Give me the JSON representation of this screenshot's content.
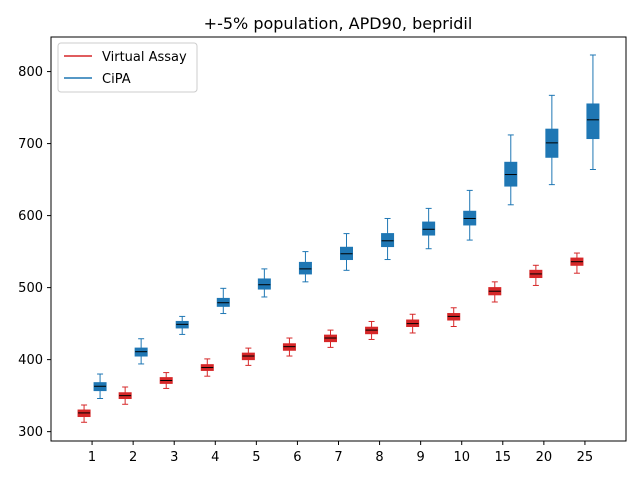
{
  "chart_data": {
    "type": "box",
    "title": "+-5% population, APD90, bepridil",
    "xlabel": "",
    "ylabel": "",
    "categories": [
      "1",
      "2",
      "3",
      "4",
      "5",
      "6",
      "7",
      "8",
      "9",
      "10",
      "15",
      "20",
      "25"
    ],
    "ylim": [
      287,
      848
    ],
    "yticks": [
      300,
      400,
      500,
      600,
      700,
      800
    ],
    "grid": false,
    "legend_position": "upper-left",
    "series": [
      {
        "name": "Virtual Assay",
        "color": "#d62728",
        "boxes": [
          {
            "whisker_low": 313,
            "q1": 321,
            "median": 326,
            "q3": 330,
            "whisker_high": 337
          },
          {
            "whisker_low": 338,
            "q1": 346,
            "median": 350,
            "q3": 354,
            "whisker_high": 362
          },
          {
            "whisker_low": 360,
            "q1": 367,
            "median": 371,
            "q3": 375,
            "whisker_high": 382
          },
          {
            "whisker_low": 377,
            "q1": 385,
            "median": 389,
            "q3": 393,
            "whisker_high": 401
          },
          {
            "whisker_low": 392,
            "q1": 400,
            "median": 405,
            "q3": 409,
            "whisker_high": 416
          },
          {
            "whisker_low": 405,
            "q1": 413,
            "median": 418,
            "q3": 422,
            "whisker_high": 430
          },
          {
            "whisker_low": 417,
            "q1": 425,
            "median": 430,
            "q3": 434,
            "whisker_high": 441
          },
          {
            "whisker_low": 428,
            "q1": 436,
            "median": 441,
            "q3": 445,
            "whisker_high": 453
          },
          {
            "whisker_low": 437,
            "q1": 446,
            "median": 450,
            "q3": 455,
            "whisker_high": 463
          },
          {
            "whisker_low": 446,
            "q1": 455,
            "median": 460,
            "q3": 464,
            "whisker_high": 472
          },
          {
            "whisker_low": 480,
            "q1": 490,
            "median": 495,
            "q3": 500,
            "whisker_high": 508
          },
          {
            "whisker_low": 503,
            "q1": 514,
            "median": 519,
            "q3": 524,
            "whisker_high": 531
          },
          {
            "whisker_low": 520,
            "q1": 531,
            "median": 536,
            "q3": 541,
            "whisker_high": 548
          }
        ]
      },
      {
        "name": "CiPA",
        "color": "#1f77b4",
        "boxes": [
          {
            "whisker_low": 346,
            "q1": 357,
            "median": 363,
            "q3": 368,
            "whisker_high": 380
          },
          {
            "whisker_low": 394,
            "q1": 405,
            "median": 411,
            "q3": 416,
            "whisker_high": 429
          },
          {
            "whisker_low": 435,
            "q1": 444,
            "median": 449,
            "q3": 453,
            "whisker_high": 460
          },
          {
            "whisker_low": 464,
            "q1": 474,
            "median": 479,
            "q3": 485,
            "whisker_high": 499
          },
          {
            "whisker_low": 487,
            "q1": 498,
            "median": 504,
            "q3": 512,
            "whisker_high": 526
          },
          {
            "whisker_low": 508,
            "q1": 519,
            "median": 526,
            "q3": 535,
            "whisker_high": 550
          },
          {
            "whisker_low": 524,
            "q1": 539,
            "median": 547,
            "q3": 556,
            "whisker_high": 575
          },
          {
            "whisker_low": 539,
            "q1": 557,
            "median": 565,
            "q3": 575,
            "whisker_high": 596
          },
          {
            "whisker_low": 554,
            "q1": 573,
            "median": 581,
            "q3": 591,
            "whisker_high": 610
          },
          {
            "whisker_low": 566,
            "q1": 587,
            "median": 596,
            "q3": 606,
            "whisker_high": 635
          },
          {
            "whisker_low": 615,
            "q1": 641,
            "median": 657,
            "q3": 674,
            "whisker_high": 712
          },
          {
            "whisker_low": 643,
            "q1": 681,
            "median": 701,
            "q3": 720,
            "whisker_high": 767
          },
          {
            "whisker_low": 664,
            "q1": 707,
            "median": 733,
            "q3": 755,
            "whisker_high": 823
          }
        ]
      }
    ]
  }
}
